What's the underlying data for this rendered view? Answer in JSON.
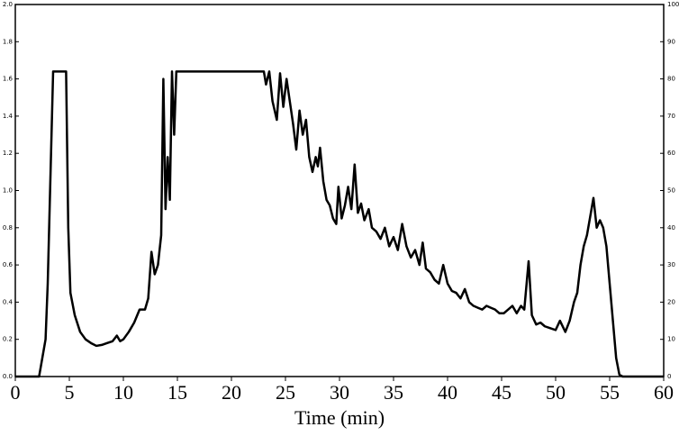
{
  "chart_data": {
    "type": "line",
    "xlabel": "Time (min)",
    "x": [
      0,
      2.2,
      2.5,
      2.8,
      3.0,
      3.5,
      4.7,
      4.9,
      5.1,
      5.5,
      6.0,
      6.5,
      7.0,
      7.5,
      8.0,
      8.5,
      9.0,
      9.4,
      9.7,
      10.0,
      10.5,
      11.0,
      11.5,
      12.0,
      12.3,
      12.6,
      12.9,
      13.2,
      13.5,
      13.7,
      13.9,
      14.1,
      14.3,
      14.5,
      14.7,
      14.9,
      23.0,
      23.2,
      23.5,
      23.8,
      24.2,
      24.5,
      24.8,
      25.1,
      25.4,
      25.7,
      26.0,
      26.3,
      26.6,
      26.9,
      27.2,
      27.5,
      27.8,
      28.0,
      28.2,
      28.5,
      28.8,
      29.1,
      29.4,
      29.7,
      29.9,
      30.2,
      30.5,
      30.8,
      31.1,
      31.4,
      31.7,
      32.0,
      32.3,
      32.7,
      33.0,
      33.4,
      33.8,
      34.2,
      34.6,
      35.0,
      35.4,
      35.8,
      36.2,
      36.6,
      37.0,
      37.4,
      37.7,
      38.0,
      38.4,
      38.8,
      39.2,
      39.6,
      40.0,
      40.4,
      40.8,
      41.2,
      41.6,
      42.0,
      42.4,
      42.8,
      43.2,
      43.6,
      44.0,
      44.4,
      44.8,
      45.2,
      45.6,
      46.0,
      46.4,
      46.8,
      47.1,
      47.5,
      47.8,
      48.2,
      48.6,
      49.0,
      49.5,
      50.0,
      50.4,
      50.9,
      51.3,
      51.7,
      52.0,
      52.3,
      52.6,
      52.9,
      53.2,
      53.5,
      53.8,
      54.1,
      54.4,
      54.7,
      55.0,
      55.3,
      55.6,
      55.9,
      56.2,
      60
    ],
    "series": [
      {
        "color": "#000000",
        "values": [
          0,
          0,
          0.1,
          0.2,
          0.5,
          1.64,
          1.64,
          0.8,
          0.45,
          0.33,
          0.24,
          0.2,
          0.18,
          0.165,
          0.17,
          0.18,
          0.19,
          0.22,
          0.19,
          0.2,
          0.24,
          0.29,
          0.36,
          0.36,
          0.42,
          0.67,
          0.55,
          0.6,
          0.76,
          1.6,
          0.9,
          1.18,
          0.95,
          1.64,
          1.3,
          1.64,
          1.64,
          1.57,
          1.64,
          1.48,
          1.38,
          1.63,
          1.45,
          1.6,
          1.48,
          1.36,
          1.22,
          1.43,
          1.3,
          1.38,
          1.18,
          1.1,
          1.18,
          1.13,
          1.23,
          1.05,
          0.95,
          0.92,
          0.85,
          0.82,
          1.02,
          0.85,
          0.92,
          1.02,
          0.9,
          1.14,
          0.88,
          0.93,
          0.84,
          0.9,
          0.8,
          0.78,
          0.74,
          0.8,
          0.7,
          0.75,
          0.68,
          0.82,
          0.7,
          0.64,
          0.68,
          0.6,
          0.72,
          0.58,
          0.56,
          0.52,
          0.5,
          0.6,
          0.5,
          0.46,
          0.45,
          0.42,
          0.47,
          0.4,
          0.38,
          0.37,
          0.36,
          0.38,
          0.37,
          0.36,
          0.34,
          0.34,
          0.36,
          0.38,
          0.34,
          0.38,
          0.36,
          0.62,
          0.33,
          0.28,
          0.29,
          0.27,
          0.26,
          0.25,
          0.3,
          0.24,
          0.3,
          0.4,
          0.45,
          0.6,
          0.7,
          0.76,
          0.86,
          0.96,
          0.8,
          0.84,
          0.8,
          0.7,
          0.5,
          0.3,
          0.1,
          0.01,
          0,
          0
        ]
      }
    ],
    "xlim": [
      0,
      60
    ],
    "xticks": [
      0,
      5,
      10,
      15,
      20,
      25,
      30,
      35,
      40,
      45,
      50,
      55,
      60
    ],
    "ylim": [
      0,
      2
    ],
    "yticks": [
      {
        "value": 0,
        "label": "0.0"
      },
      0.2,
      0.4,
      0.6,
      0.8,
      {
        "value": 1,
        "label": "1.0"
      },
      1.2,
      1.4,
      1.6,
      1.8,
      {
        "value": 2,
        "label": "2.0"
      }
    ],
    "y2lim": [
      0,
      100
    ],
    "y2ticks": [
      0,
      10,
      20,
      30,
      40,
      50,
      60,
      70,
      80,
      90,
      100
    ]
  }
}
